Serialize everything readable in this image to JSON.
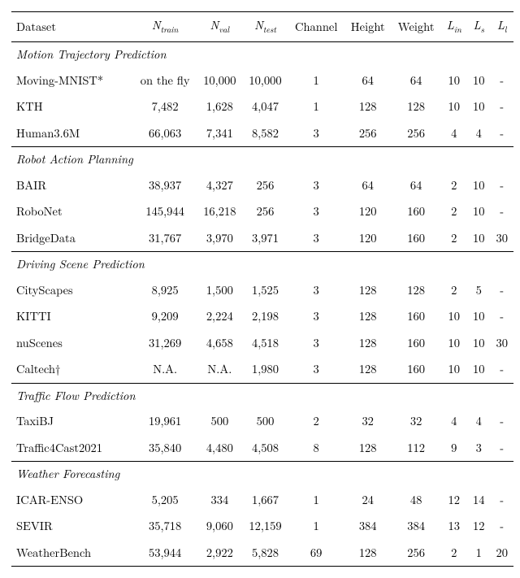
{
  "colors": {
    "fg": "#000000",
    "bg": "#ffffff",
    "rule": "#000000"
  },
  "font": {
    "family": "serif",
    "size_pt": 14.5
  },
  "table": {
    "columns": [
      {
        "key": "dataset",
        "label": "Dataset",
        "align": "left"
      },
      {
        "key": "ntrain",
        "label_html": "N<sub>train</sub>",
        "align": "center",
        "italic": true
      },
      {
        "key": "nval",
        "label_html": "N<sub>val</sub>",
        "align": "center",
        "italic": true
      },
      {
        "key": "ntest",
        "label_html": "N<sub>test</sub>",
        "align": "center",
        "italic": true
      },
      {
        "key": "channel",
        "label": "Channel",
        "align": "center"
      },
      {
        "key": "height",
        "label": "Height",
        "align": "center"
      },
      {
        "key": "weight",
        "label": "Weight",
        "align": "center"
      },
      {
        "key": "lin",
        "label_html": "L<sub>in</sub>",
        "align": "center",
        "italic": true
      },
      {
        "key": "ls",
        "label_html": "L<sub>s</sub>",
        "align": "center",
        "italic": true
      },
      {
        "key": "ll",
        "label_html": "L<sub>l</sub>",
        "align": "center",
        "italic": true
      }
    ],
    "sections": [
      {
        "title": "Motion Trajectory Prediction",
        "rows": [
          {
            "dataset": "Moving-MNIST*",
            "ntrain": "on the fly",
            "nval": "10,000",
            "ntest": "10,000",
            "channel": "1",
            "height": "64",
            "weight": "64",
            "lin": "10",
            "ls": "10",
            "ll": "-"
          },
          {
            "dataset": "KTH",
            "ntrain": "7,482",
            "nval": "1,628",
            "ntest": "4,047",
            "channel": "1",
            "height": "128",
            "weight": "128",
            "lin": "10",
            "ls": "10",
            "ll": "-"
          },
          {
            "dataset": "Human3.6M",
            "ntrain": "66,063",
            "nval": "7,341",
            "ntest": "8,582",
            "channel": "3",
            "height": "256",
            "weight": "256",
            "lin": "4",
            "ls": "4",
            "ll": "-"
          }
        ]
      },
      {
        "title": "Robot Action Planning",
        "rows": [
          {
            "dataset": "BAIR",
            "ntrain": "38,937",
            "nval": "4,327",
            "ntest": "256",
            "channel": "3",
            "height": "64",
            "weight": "64",
            "lin": "2",
            "ls": "10",
            "ll": "-"
          },
          {
            "dataset": "RoboNet",
            "ntrain": "145,944",
            "nval": "16,218",
            "ntest": "256",
            "channel": "3",
            "height": "120",
            "weight": "160",
            "lin": "2",
            "ls": "10",
            "ll": "-"
          },
          {
            "dataset": "BridgeData",
            "ntrain": "31,767",
            "nval": "3,970",
            "ntest": "3,971",
            "channel": "3",
            "height": "120",
            "weight": "160",
            "lin": "2",
            "ls": "10",
            "ll": "30"
          }
        ]
      },
      {
        "title": "Driving Scene Prediction",
        "rows": [
          {
            "dataset": "CityScapes",
            "ntrain": "8,925",
            "nval": "1,500",
            "ntest": "1,525",
            "channel": "3",
            "height": "128",
            "weight": "128",
            "lin": "2",
            "ls": "5",
            "ll": "-"
          },
          {
            "dataset": "KITTI",
            "ntrain": "9,209",
            "nval": "2,224",
            "ntest": "2,198",
            "channel": "3",
            "height": "128",
            "weight": "160",
            "lin": "10",
            "ls": "10",
            "ll": "-"
          },
          {
            "dataset": "nuScenes",
            "ntrain": "31,269",
            "nval": "4,658",
            "ntest": "4,518",
            "channel": "3",
            "height": "128",
            "weight": "160",
            "lin": "10",
            "ls": "10",
            "ll": "30"
          },
          {
            "dataset": "Caltech†",
            "ntrain": "N.A.",
            "nval": "N.A.",
            "ntest": "1,980",
            "channel": "3",
            "height": "128",
            "weight": "160",
            "lin": "10",
            "ls": "10",
            "ll": "-"
          }
        ]
      },
      {
        "title": "Traffic Flow Prediction",
        "rows": [
          {
            "dataset": "TaxiBJ",
            "ntrain": "19,961",
            "nval": "500",
            "ntest": "500",
            "channel": "2",
            "height": "32",
            "weight": "32",
            "lin": "4",
            "ls": "4",
            "ll": "-"
          },
          {
            "dataset": "Traffic4Cast2021",
            "ntrain": "35,840",
            "nval": "4,480",
            "ntest": "4,508",
            "channel": "8",
            "height": "128",
            "weight": "112",
            "lin": "9",
            "ls": "3",
            "ll": "-"
          }
        ]
      },
      {
        "title": "Weather Forecasting",
        "rows": [
          {
            "dataset": "ICAR-ENSO",
            "ntrain": "5,205",
            "nval": "334",
            "ntest": "1,667",
            "channel": "1",
            "height": "24",
            "weight": "48",
            "lin": "12",
            "ls": "14",
            "ll": "-"
          },
          {
            "dataset": "SEVIR",
            "ntrain": "35,718",
            "nval": "9,060",
            "ntest": "12,159",
            "channel": "1",
            "height": "384",
            "weight": "384",
            "lin": "13",
            "ls": "12",
            "ll": "-"
          },
          {
            "dataset": "WeatherBench",
            "ntrain": "53,944",
            "nval": "2,922",
            "ntest": "5,828",
            "channel": "69",
            "height": "128",
            "weight": "256",
            "lin": "2",
            "ls": "1",
            "ll": "20"
          }
        ]
      }
    ]
  }
}
